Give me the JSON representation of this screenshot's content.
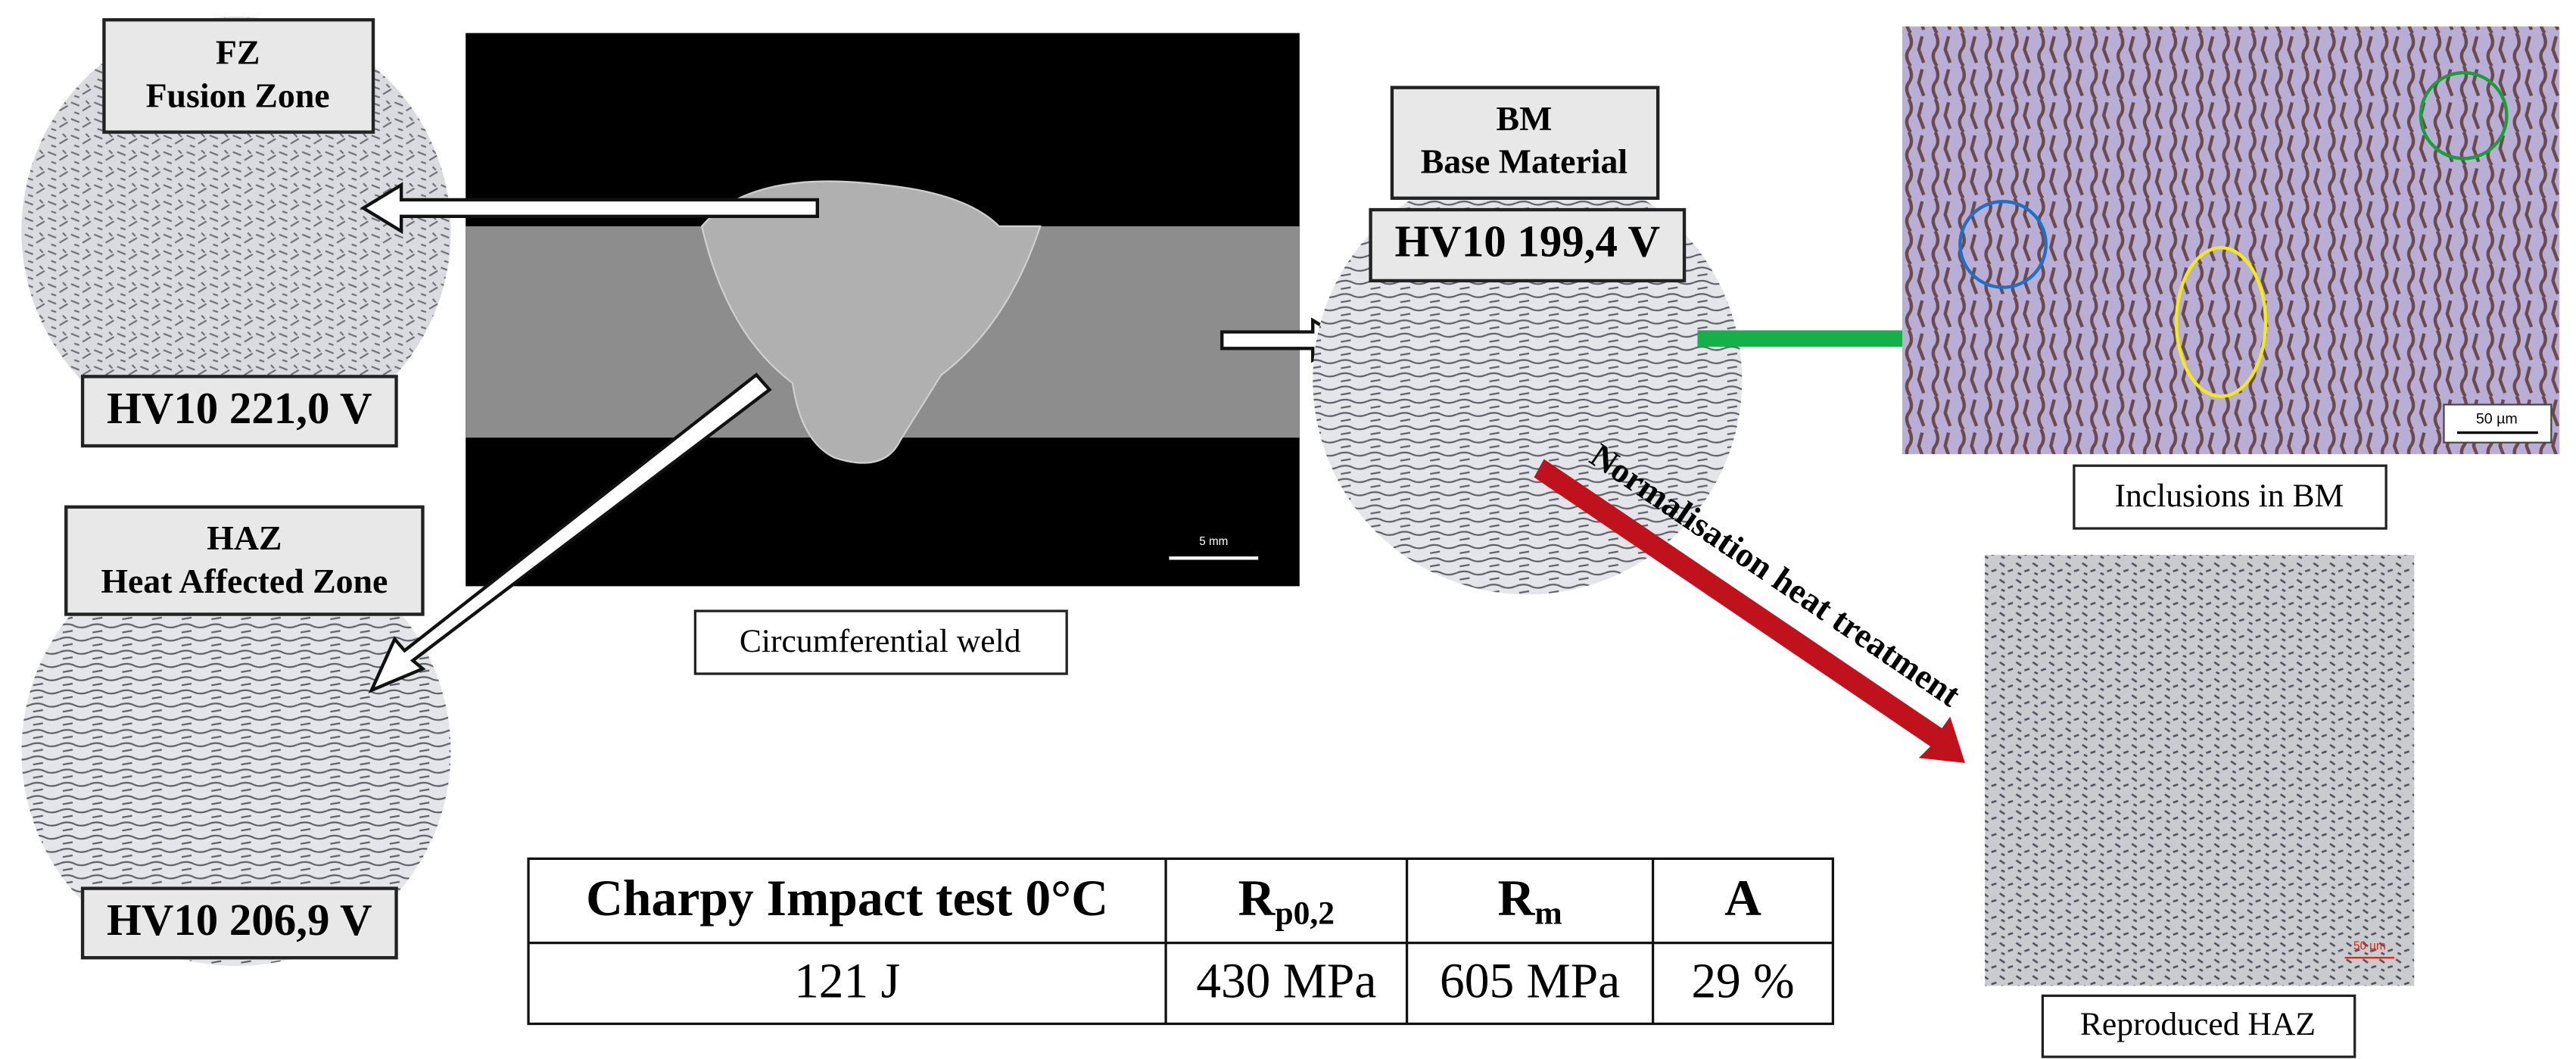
{
  "fusion_zone": {
    "code": "FZ",
    "name": "Fusion Zone",
    "hardness": "HV10 221,0 V"
  },
  "heat_affected_zone": {
    "code": "HAZ",
    "name": "Heat Affected Zone",
    "hardness": "HV10 206,9 V"
  },
  "base_material": {
    "code": "BM",
    "name": "Base Material",
    "hardness": "HV10 199,4 V"
  },
  "weld_image": {
    "caption": "Circumferential weld",
    "scale": "5 mm"
  },
  "inclusions_image": {
    "caption": "Inclusions in BM",
    "scale": "50 µm"
  },
  "heat_treatment_arrow": {
    "label": "Normalisation heat treatment"
  },
  "reproduced_image": {
    "caption": "Reproduced HAZ",
    "scale": "50 µm"
  },
  "table": {
    "header": [
      {
        "main": "Charpy Impact test 0°C"
      },
      {
        "main": "R",
        "sub": "p0,2"
      },
      {
        "main": "R",
        "sub": "m"
      },
      {
        "main": "A"
      }
    ],
    "rows": [
      [
        "121 J",
        "430 MPa",
        "605 MPa",
        "29 %"
      ]
    ]
  }
}
